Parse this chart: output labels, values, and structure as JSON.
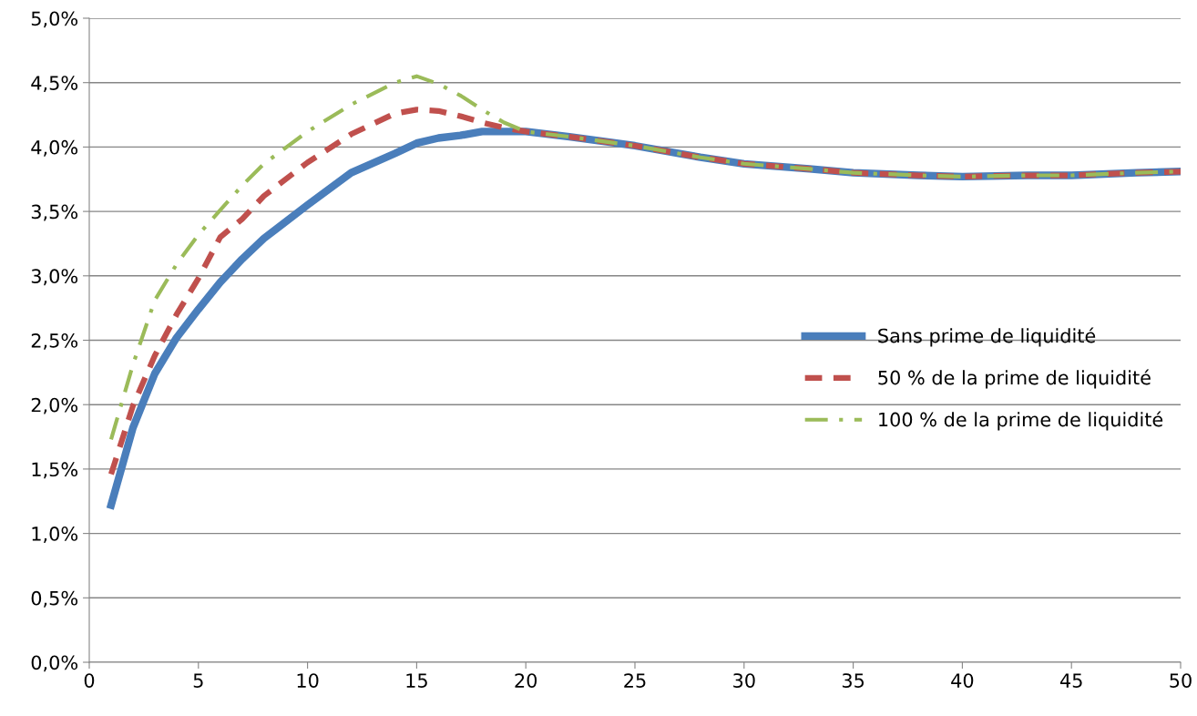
{
  "chart_data": {
    "type": "line",
    "x": [
      1,
      2,
      3,
      4,
      5,
      6,
      7,
      8,
      10,
      12,
      14,
      15,
      16,
      17,
      18,
      19,
      20,
      22,
      25,
      28,
      30,
      33,
      35,
      38,
      40,
      43,
      45,
      48,
      50
    ],
    "series": [
      {
        "name": "Sans prime de liquidité",
        "color": "#4a7ebb",
        "line_style": "solid",
        "values": [
          1.22,
          1.82,
          2.24,
          2.52,
          2.74,
          2.95,
          3.13,
          3.29,
          3.55,
          3.8,
          3.95,
          4.03,
          4.07,
          4.09,
          4.12,
          4.12,
          4.12,
          4.08,
          4.01,
          3.92,
          3.87,
          3.83,
          3.8,
          3.78,
          3.77,
          3.78,
          3.78,
          3.8,
          3.81
        ]
      },
      {
        "name": "50 % de la prime de liquidité",
        "color": "#c0504d",
        "line_style": "dashed",
        "values": [
          1.46,
          1.99,
          2.38,
          2.7,
          2.98,
          3.3,
          3.44,
          3.62,
          3.88,
          4.1,
          4.26,
          4.29,
          4.28,
          4.24,
          4.19,
          4.15,
          4.12,
          4.08,
          4.01,
          3.92,
          3.87,
          3.83,
          3.8,
          3.78,
          3.77,
          3.78,
          3.78,
          3.8,
          3.81
        ]
      },
      {
        "name": "100 % de la prime de liquidité",
        "color": "#9bbb59",
        "line_style": "dashdot",
        "values": [
          1.73,
          2.31,
          2.81,
          3.09,
          3.32,
          3.51,
          3.7,
          3.87,
          4.12,
          4.33,
          4.5,
          4.55,
          4.49,
          4.4,
          4.29,
          4.19,
          4.12,
          4.08,
          4.01,
          3.92,
          3.87,
          3.83,
          3.8,
          3.78,
          3.77,
          3.78,
          3.78,
          3.8,
          3.81
        ]
      }
    ],
    "xlim": [
      0,
      50
    ],
    "xticks": [
      0,
      5,
      10,
      15,
      20,
      25,
      30,
      35,
      40,
      45,
      50
    ],
    "ylim": [
      0,
      5
    ],
    "yticks": [
      {
        "value": 0,
        "label": "0,0%"
      },
      {
        "value": 0.5,
        "label": "0,5%"
      },
      {
        "value": 1,
        "label": "1,0%"
      },
      {
        "value": 1.5,
        "label": "1,5%"
      },
      {
        "value": 2,
        "label": "2,0%"
      },
      {
        "value": 2.5,
        "label": "2,5%"
      },
      {
        "value": 3,
        "label": "3,0%"
      },
      {
        "value": 3.5,
        "label": "3,5%"
      },
      {
        "value": 4,
        "label": "4,0%"
      },
      {
        "value": 4.5,
        "label": "4,5%"
      },
      {
        "value": 5,
        "label": "5,0%"
      }
    ],
    "grid": "y",
    "legend": "right"
  }
}
